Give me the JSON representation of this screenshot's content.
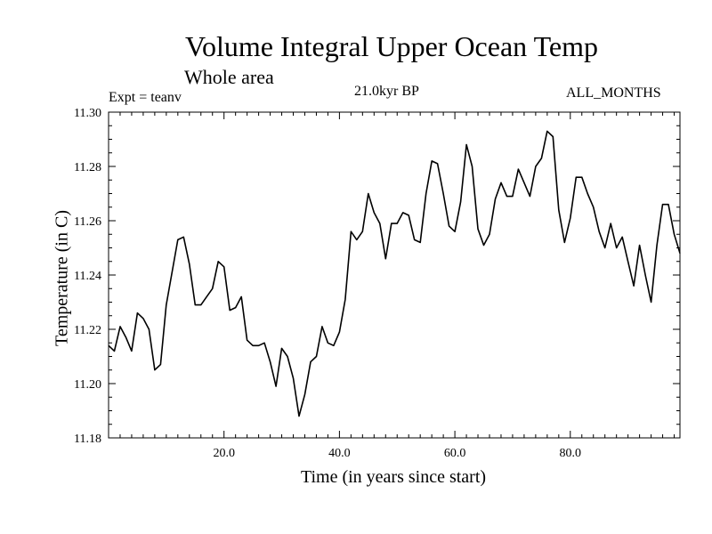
{
  "chart_data": {
    "type": "line",
    "title": "Volume Integral Upper Ocean Temp",
    "subtitle": "Whole area",
    "annotations": {
      "experiment": "Expt = teanv",
      "period": "21.0kyr BP",
      "months": "ALL_MONTHS"
    },
    "xlabel": "Time (in years since start)",
    "ylabel": "Temperature (in C)",
    "xlim": [
      0,
      99
    ],
    "ylim": [
      11.18,
      11.3
    ],
    "x_ticks": [
      20,
      40,
      60,
      80
    ],
    "x_tick_labels": [
      "20.0",
      "40.0",
      "60.0",
      "80.0"
    ],
    "y_ticks": [
      11.18,
      11.2,
      11.22,
      11.24,
      11.26,
      11.28,
      11.3
    ],
    "y_tick_labels": [
      "11.18",
      "11.20",
      "11.22",
      "11.24",
      "11.26",
      "11.28",
      "11.30"
    ],
    "grid": false,
    "series": [
      {
        "name": "Temperature",
        "x": [
          0,
          1,
          2,
          3,
          4,
          5,
          6,
          7,
          8,
          9,
          10,
          11,
          12,
          13,
          14,
          15,
          16,
          17,
          18,
          19,
          20,
          21,
          22,
          23,
          24,
          25,
          26,
          27,
          28,
          29,
          30,
          31,
          32,
          33,
          34,
          35,
          36,
          37,
          38,
          39,
          40,
          41,
          42,
          43,
          44,
          45,
          46,
          47,
          48,
          49,
          50,
          51,
          52,
          53,
          54,
          55,
          56,
          57,
          58,
          59,
          60,
          61,
          62,
          63,
          64,
          65,
          66,
          67,
          68,
          69,
          70,
          71,
          72,
          73,
          74,
          75,
          76,
          77,
          78,
          79,
          80,
          81,
          82,
          83,
          84,
          85,
          86,
          87,
          88,
          89,
          90,
          91,
          92,
          93,
          94,
          95,
          96,
          97,
          98,
          99
        ],
        "values": [
          11.214,
          11.212,
          11.221,
          11.217,
          11.212,
          11.226,
          11.224,
          11.22,
          11.205,
          11.207,
          11.229,
          11.241,
          11.253,
          11.254,
          11.244,
          11.229,
          11.229,
          11.232,
          11.235,
          11.245,
          11.243,
          11.227,
          11.228,
          11.232,
          11.216,
          11.214,
          11.214,
          11.215,
          11.208,
          11.199,
          11.213,
          11.21,
          11.202,
          11.188,
          11.196,
          11.208,
          11.21,
          11.221,
          11.215,
          11.214,
          11.219,
          11.231,
          11.256,
          11.253,
          11.256,
          11.27,
          11.263,
          11.259,
          11.246,
          11.259,
          11.259,
          11.263,
          11.262,
          11.253,
          11.252,
          11.27,
          11.282,
          11.281,
          11.27,
          11.258,
          11.256,
          11.267,
          11.288,
          11.28,
          11.257,
          11.251,
          11.255,
          11.268,
          11.274,
          11.269,
          11.269,
          11.279,
          11.274,
          11.269,
          11.28,
          11.283,
          11.293,
          11.291,
          11.264,
          11.252,
          11.261,
          11.276,
          11.276,
          11.27,
          11.265,
          11.256,
          11.25,
          11.259,
          11.25,
          11.254,
          11.245,
          11.236,
          11.251,
          11.24,
          11.23,
          11.251,
          11.266,
          11.266,
          11.255,
          11.248
        ]
      }
    ]
  }
}
